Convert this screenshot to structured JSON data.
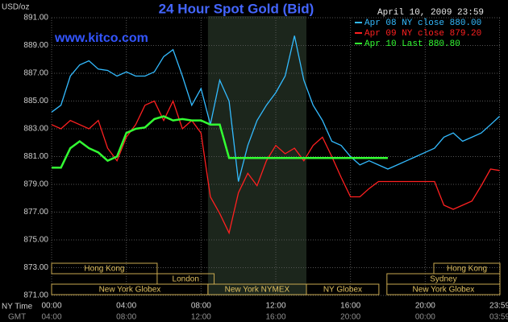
{
  "chart_data": {
    "type": "line",
    "title": "24 Hour Spot Gold (Bid)",
    "unit_label": "USD/oz",
    "source": "www.kitco.com",
    "timestamp": "April 10, 2009 23:59",
    "x_row_labels": [
      "NY Time",
      "GMT"
    ],
    "x": [
      0,
      0.5,
      1,
      1.5,
      2,
      2.5,
      3,
      3.5,
      4,
      4.5,
      5,
      5.5,
      6,
      6.5,
      7,
      7.5,
      8,
      8.5,
      9,
      9.5,
      10,
      10.5,
      11,
      11.5,
      12,
      12.5,
      13,
      13.5,
      14,
      14.5,
      15,
      15.5,
      16,
      16.5,
      17,
      17.5,
      18,
      18.5,
      19,
      19.5,
      20,
      20.5,
      21,
      21.5,
      22,
      22.5,
      23,
      23.5,
      23.98
    ],
    "series": [
      {
        "name": "Apr 08 NY close 880.00",
        "color": "#33bbff",
        "values": [
          884.2,
          884.7,
          886.8,
          887.6,
          887.9,
          887.3,
          887.2,
          886.8,
          887.1,
          886.8,
          886.8,
          887.1,
          888.2,
          888.7,
          886.8,
          884.7,
          885.9,
          883.3,
          886.5,
          885.0,
          879.2,
          881.8,
          883.6,
          884.7,
          885.6,
          886.8,
          889.7,
          886.5,
          884.7,
          883.6,
          882.1,
          881.8,
          881.0,
          880.4,
          880.7,
          880.4,
          880.1,
          880.4,
          880.7,
          881.0,
          881.3,
          881.6,
          882.4,
          882.7,
          882.1,
          882.4,
          882.7,
          883.3,
          883.9
        ]
      },
      {
        "name": "Apr 09 NY close 879.20",
        "color": "#ff2020",
        "values": [
          883.3,
          883.0,
          883.6,
          883.3,
          883.0,
          883.6,
          881.6,
          880.7,
          882.4,
          883.3,
          884.7,
          885.0,
          883.6,
          885.0,
          883.0,
          883.6,
          882.7,
          878.1,
          876.9,
          875.5,
          878.4,
          879.8,
          878.9,
          880.7,
          881.8,
          881.2,
          881.6,
          880.7,
          881.8,
          882.4,
          881.0,
          879.5,
          878.1,
          878.1,
          878.7,
          879.2,
          879.2,
          879.2,
          879.2,
          879.2,
          879.2,
          879.2,
          877.5,
          877.2,
          877.5,
          877.8,
          878.9,
          880.1,
          880.0
        ]
      },
      {
        "name": "Apr 10 Last 880.80",
        "color": "#33ff33",
        "values": [
          880.2,
          880.2,
          881.6,
          882.1,
          881.6,
          881.3,
          880.7,
          881.0,
          882.7,
          883.0,
          883.1,
          883.7,
          883.9,
          883.6,
          883.7,
          883.6,
          883.6,
          883.3,
          883.3,
          880.9,
          880.9,
          880.9,
          880.9,
          880.9,
          880.9,
          880.9,
          880.9,
          880.9,
          880.9,
          880.9,
          880.9,
          880.9,
          880.9,
          880.9,
          880.9,
          880.9,
          880.9,
          null,
          null,
          null,
          null,
          null,
          null,
          null,
          null,
          null,
          null,
          null,
          null
        ]
      }
    ],
    "xlim": [
      0,
      24
    ],
    "xticks": [
      {
        "value": 0,
        "label": "00:00"
      },
      {
        "value": 4,
        "label": "04:00"
      },
      {
        "value": 8,
        "label": "08:00"
      },
      {
        "value": 12,
        "label": "12:00"
      },
      {
        "value": 16,
        "label": "16:00"
      },
      {
        "value": 20,
        "label": "20:00"
      },
      {
        "value": 23.98,
        "label": "23:59"
      }
    ],
    "xticks_gmt": [
      "04:00",
      "08:00",
      "12:00",
      "16:00",
      "20:00",
      "00:00",
      "03:59"
    ],
    "ylim": [
      871,
      891
    ],
    "yticks": [
      {
        "value": 871,
        "label": "871.00"
      },
      {
        "value": 873,
        "label": "873.00"
      },
      {
        "value": 875,
        "label": "875.00"
      },
      {
        "value": 877,
        "label": "877.00"
      },
      {
        "value": 879,
        "label": "879.00"
      },
      {
        "value": 881,
        "label": "881.00"
      },
      {
        "value": 883,
        "label": "883.00"
      },
      {
        "value": 885,
        "label": "885.00"
      },
      {
        "value": 887,
        "label": "887.00"
      },
      {
        "value": 889,
        "label": "889.00"
      },
      {
        "value": 891,
        "label": "891.00"
      }
    ],
    "grid": true,
    "highlight": {
      "start": 8.37,
      "end": 13.64
    },
    "session_rows": [
      [
        {
          "label": "Hong Kong",
          "start": 0,
          "end": 5.65
        },
        {
          "label": "Hong Kong",
          "start": 20.46,
          "end": 24
        }
      ],
      [
        {
          "label": "London",
          "start": 5.65,
          "end": 8.7
        },
        {
          "label": "Sydney",
          "start": 17.95,
          "end": 24
        }
      ],
      [
        {
          "label": "New York Globex",
          "start": 0,
          "end": 8.37
        },
        {
          "label": "New York NYMEX",
          "start": 8.37,
          "end": 13.64
        },
        {
          "label": "NY Globex",
          "start": 13.64,
          "end": 17.52
        },
        {
          "label": "New York Globex",
          "start": 17.95,
          "end": 24
        }
      ]
    ]
  }
}
